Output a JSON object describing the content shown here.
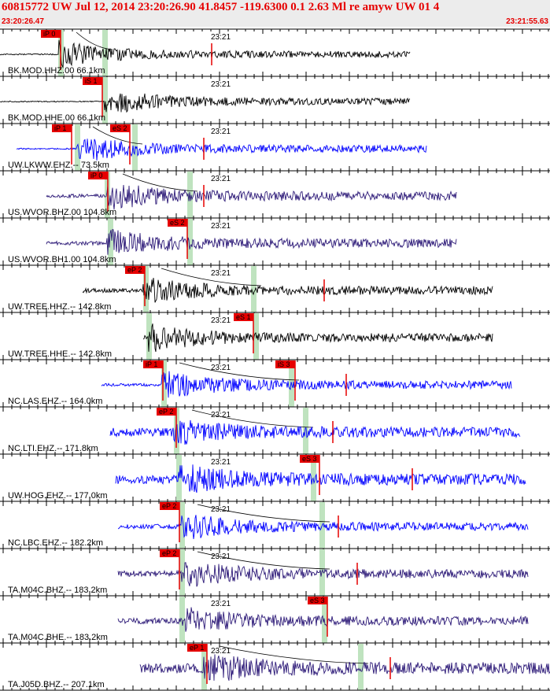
{
  "header": {
    "title": "60815772 UW Jul 12, 2014 23:20:26.90   41.8457 -119.6300  0.1 2.63 Ml re amyw UW 01   4",
    "start_time": "23:20:26.47",
    "end_time": "23:21:55.63"
  },
  "panels": [
    {
      "label": "BK.MOD.HHZ.00 66.1km",
      "minute_label": "23:21",
      "color": "#000000",
      "trace_start": 0.0,
      "trace_end": 0.745,
      "p_start": 0.108,
      "p": 0.11,
      "s": 0.19,
      "amp": 0.55,
      "picks": [
        {
          "text": "iP 0",
          "at": 0.075
        }
      ],
      "markers": [
        0.385
      ],
      "band": 0,
      "curve": true,
      "noise": 0.03
    },
    {
      "label": "BK.MOD.HHE.00 66.1km",
      "minute_label": "23:21",
      "color": "#000000",
      "trace_start": 0.0,
      "trace_end": 0.745,
      "p_start": 0.19,
      "p": 0.19,
      "s": 0.19,
      "amp": 0.55,
      "picks": [
        {
          "text": "iS 1",
          "at": 0.15
        }
      ],
      "markers": [],
      "band": 0,
      "curve": false,
      "noise": 0.02
    },
    {
      "label": "UW.LKWW.EHZ.-- 73.5km",
      "minute_label": "23:21",
      "color": "#0000ff",
      "trace_start": 0.03,
      "trace_end": 0.775,
      "p_start": 0.14,
      "p": 0.14,
      "s": 0.245,
      "amp": 0.6,
      "picks": [
        {
          "text": "iP 1",
          "at": 0.095
        },
        {
          "text": "eS 2",
          "at": 0.2
        }
      ],
      "markers": [
        0.37
      ],
      "band": 0,
      "curve": true,
      "noise": 0.03
    },
    {
      "label": "US.WVOR.BHZ.00 104.8km",
      "minute_label": "23:21",
      "color": "#2d1a78",
      "trace_start": 0.085,
      "trace_end": 0.83,
      "p_start": 0.195,
      "p": 0.195,
      "s": 0.345,
      "amp": 0.55,
      "picks": [
        {
          "text": "iP 0",
          "at": 0.16
        }
      ],
      "markers": [
        0.37
      ],
      "band": 0.15,
      "curve": true,
      "noise": 0.12
    },
    {
      "label": "US.WVOR.BH1.00 104.8km",
      "minute_label": "23:21",
      "color": "#2d1a78",
      "trace_start": 0.085,
      "trace_end": 0.83,
      "p_start": 0.195,
      "p": 0.2,
      "s": 0.345,
      "amp": 0.55,
      "picks": [
        {
          "text": "eS 2",
          "at": 0.305
        }
      ],
      "markers": [],
      "band": 0.15,
      "curve": false,
      "noise": 0.12
    },
    {
      "label": "UW.TREE.HHZ.-- 142.8km",
      "minute_label": "23:21",
      "color": "#000000",
      "trace_start": 0.15,
      "trace_end": 0.895,
      "p_start": 0.26,
      "p": 0.265,
      "s": 0.46,
      "amp": 0.55,
      "picks": [
        {
          "text": "eP 2",
          "at": 0.228
        }
      ],
      "markers": [
        0.59
      ],
      "band": 0.12,
      "curve": true,
      "noise": 0.15
    },
    {
      "label": "UW.TREE.HHE.-- 142.8km",
      "minute_label": "23:21",
      "color": "#000000",
      "trace_start": 0.26,
      "trace_end": 0.895,
      "p_start": 0.27,
      "p": 0.27,
      "s": 0.465,
      "amp": 0.55,
      "picks": [
        {
          "text": "eS 1",
          "at": 0.425
        }
      ],
      "markers": [],
      "band": 0.12,
      "curve": false,
      "noise": 0.15
    },
    {
      "label": "NC.LAS.EHZ.-- 164.0km",
      "minute_label": "23:21",
      "color": "#0000ff",
      "trace_start": 0.185,
      "trace_end": 0.93,
      "p_start": 0.295,
      "p": 0.298,
      "s": 0.53,
      "amp": 0.6,
      "picks": [
        {
          "text": "iP 1",
          "at": 0.26
        },
        {
          "text": "iS 3",
          "at": 0.5
        }
      ],
      "markers": [
        0.63
      ],
      "band": 0.05,
      "curve": true,
      "noise": 0.08
    },
    {
      "label": "NC.LTI.EHZ.-- 171.8km",
      "minute_label": "23:21",
      "color": "#0000ff",
      "trace_start": 0.2,
      "trace_end": 0.945,
      "p_start": 0.315,
      "p": 0.32,
      "s": 0.555,
      "amp": 0.5,
      "picks": [
        {
          "text": "eP 2",
          "at": 0.285
        }
      ],
      "markers": [
        0.605
      ],
      "band": 0.3,
      "curve": true,
      "noise": 0.35
    },
    {
      "label": "UW.HOG.EHZ.-- 177.0km",
      "minute_label": "23:21",
      "color": "#0000ff",
      "trace_start": 0.21,
      "trace_end": 0.955,
      "p_start": 0.325,
      "p": 0.325,
      "s": 0.57,
      "amp": 0.6,
      "picks": [
        {
          "text": "eS 3",
          "at": 0.545
        }
      ],
      "markers": [
        0.75
      ],
      "band": 0.25,
      "curve": false,
      "noise": 0.3
    },
    {
      "label": "NC.LBC.EHZ.-- 182.2km",
      "minute_label": "23:21",
      "color": "#0000ff",
      "trace_start": 0.215,
      "trace_end": 0.96,
      "p_start": 0.33,
      "p": 0.33,
      "s": 0.585,
      "amp": 0.55,
      "picks": [
        {
          "text": "eP 2",
          "at": 0.29
        }
      ],
      "markers": [
        0.615
      ],
      "band": 0.1,
      "curve": true,
      "noise": 0.15
    },
    {
      "label": "TA.M04C.BHZ.-- 183.2km",
      "minute_label": "23:21",
      "color": "#2d1a78",
      "trace_start": 0.215,
      "trace_end": 0.96,
      "p_start": 0.33,
      "p": 0.33,
      "s": 0.585,
      "amp": 0.55,
      "picks": [
        {
          "text": "eP 2",
          "at": 0.29
        }
      ],
      "markers": [
        0.65
      ],
      "band": 0.15,
      "curve": true,
      "noise": 0.2
    },
    {
      "label": "TA.M04C.BHE.-- 183.2km",
      "minute_label": "23:21",
      "color": "#2d1a78",
      "trace_start": 0.215,
      "trace_end": 0.96,
      "p_start": 0.33,
      "p": 0.33,
      "s": 0.59,
      "amp": 0.55,
      "picks": [
        {
          "text": "eS 3",
          "at": 0.56
        }
      ],
      "markers": [],
      "band": 0.15,
      "curve": false,
      "noise": 0.2
    },
    {
      "label": "TA.J05D.BHZ.-- 207.1km",
      "minute_label": "23:21",
      "color": "#2d1a78",
      "trace_start": 0.255,
      "trace_end": 1.0,
      "p_start": 0.37,
      "p": 0.37,
      "s": 0.655,
      "amp": 0.55,
      "picks": [
        {
          "text": "eP 1",
          "at": 0.34
        }
      ],
      "markers": [
        0.71
      ],
      "band": 0.35,
      "curve": true,
      "noise": 0.35
    }
  ]
}
